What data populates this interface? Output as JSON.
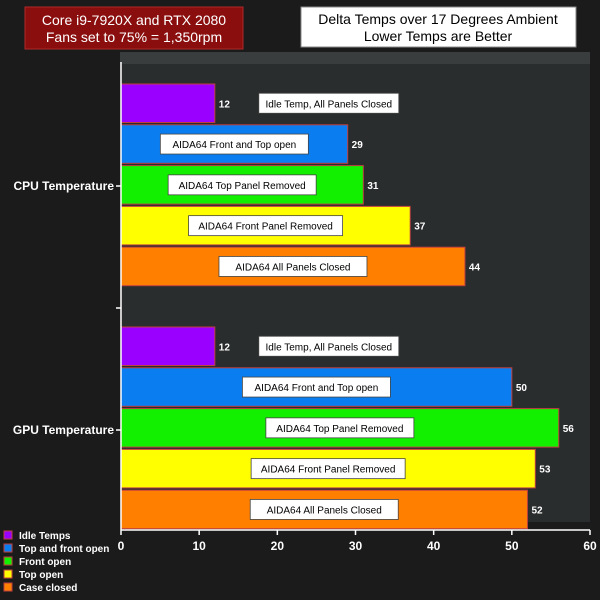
{
  "chart_data": {
    "type": "bar",
    "orientation": "horizontal",
    "subtitle_box": {
      "line1": "Core i9-7920X and RTX 2080",
      "line2": "Fans set to 75% = 1,350rpm"
    },
    "title": {
      "line1": "Delta Temps over 17 Degrees Ambient",
      "line2": "Lower Temps are Better"
    },
    "xlim": [
      0,
      60
    ],
    "x_ticks": [
      "0",
      "10",
      "20",
      "30",
      "40",
      "50",
      "60"
    ],
    "categories": [
      "CPU Temperature",
      "GPU Temperature"
    ],
    "series": [
      {
        "name": "Idle Temps",
        "color": "#9a00ff",
        "label": "Idle Temp, All Panels Closed",
        "values": [
          12,
          12
        ],
        "value_labels": [
          "12",
          "12"
        ]
      },
      {
        "name": "Top and front open",
        "color": "#0a7ef0",
        "label": "AIDA64  Front and Top open",
        "values": [
          29,
          50
        ],
        "value_labels": [
          "29",
          "50"
        ]
      },
      {
        "name": "Front open",
        "color": "#12f000",
        "label": "AIDA64  Top Panel Removed",
        "values": [
          31,
          56
        ],
        "value_labels": [
          "31",
          "56"
        ]
      },
      {
        "name": "Top open",
        "color": "#ffff00",
        "label": "AIDA64  Front Panel Removed",
        "values": [
          37,
          53
        ],
        "value_labels": [
          "37",
          "53"
        ]
      },
      {
        "name": "Case closed",
        "color": "#ff7f00",
        "label": "AIDA64  All Panels Closed",
        "values": [
          44,
          52
        ],
        "value_labels": [
          "44",
          "52"
        ]
      }
    ],
    "grid": false,
    "legend_position": "bottom-left"
  },
  "colors": {
    "subtitle_box_bg": "#8b0e0e",
    "title_box_bg": "#ffffff",
    "bar_border": "#c04040"
  }
}
